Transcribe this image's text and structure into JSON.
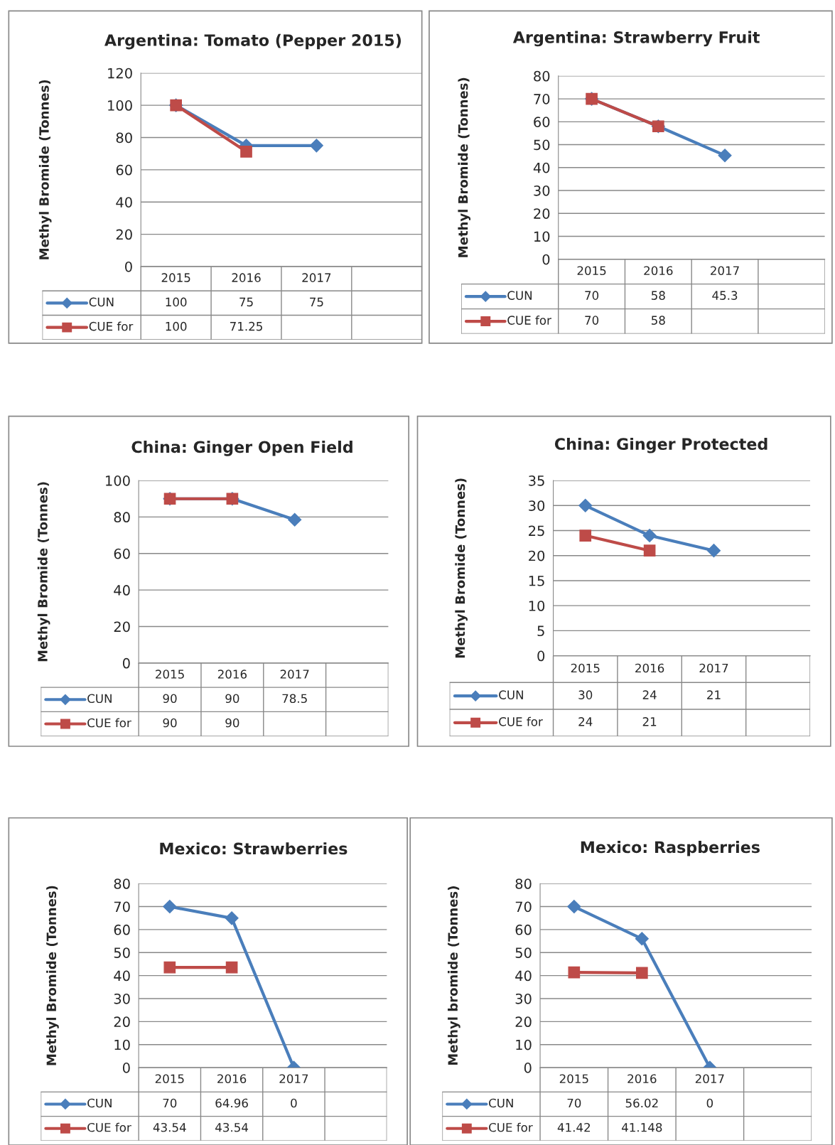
{
  "chart_data": [
    {
      "type": "line",
      "title": "Argentina: Tomato (Pepper 2015)",
      "ylabel": "Methyl Bromide (Tonnes)",
      "categories": [
        "2015",
        "2016",
        "2017",
        null
      ],
      "ylim": [
        0,
        120
      ],
      "yticks": [
        0,
        20,
        40,
        60,
        80,
        100,
        120
      ],
      "grid": "y",
      "legend": "bottom",
      "data_labels": true,
      "series": [
        {
          "name": "CUN",
          "color": "#4a7ebb",
          "marker": "diamond",
          "values": [
            100,
            75,
            75,
            null
          ]
        },
        {
          "name": "CUE for",
          "color": "#be4b48",
          "marker": "square",
          "values": [
            100,
            71.25,
            null,
            null
          ]
        }
      ]
    },
    {
      "type": "line",
      "title": "Argentina: Strawberry Fruit",
      "ylabel": "Methyl Bromide (Tonnes)",
      "categories": [
        "2015",
        "2016",
        "2017",
        null
      ],
      "ylim": [
        0,
        80
      ],
      "yticks": [
        0,
        10,
        20,
        30,
        40,
        50,
        60,
        70,
        80
      ],
      "grid": "y",
      "legend": "bottom",
      "data_labels": true,
      "series": [
        {
          "name": "CUN",
          "color": "#4a7ebb",
          "marker": "diamond",
          "values": [
            70,
            58,
            45.3,
            null
          ]
        },
        {
          "name": "CUE for",
          "color": "#be4b48",
          "marker": "square",
          "values": [
            70,
            58,
            null,
            null
          ]
        }
      ]
    },
    {
      "type": "line",
      "title": "China: Ginger Open Field",
      "ylabel": "Methyl Bromide (Tonnes)",
      "categories": [
        "2015",
        "2016",
        "2017",
        null
      ],
      "ylim": [
        0,
        100
      ],
      "yticks": [
        0,
        20,
        40,
        60,
        80,
        100
      ],
      "grid": "y",
      "legend": "bottom",
      "data_labels": true,
      "series": [
        {
          "name": "CUN",
          "color": "#4a7ebb",
          "marker": "diamond",
          "values": [
            90,
            90,
            78.5,
            null
          ]
        },
        {
          "name": "CUE for",
          "color": "#be4b48",
          "marker": "square",
          "values": [
            90,
            90,
            null,
            null
          ]
        }
      ]
    },
    {
      "type": "line",
      "title": "China: Ginger Protected",
      "ylabel": "Methyl Bromide (Tonnes)",
      "categories": [
        "2015",
        "2016",
        "2017",
        null
      ],
      "ylim": [
        0,
        35
      ],
      "yticks": [
        0,
        5,
        10,
        15,
        20,
        25,
        30,
        35
      ],
      "grid": "y",
      "legend": "bottom",
      "data_labels": true,
      "series": [
        {
          "name": "CUN",
          "color": "#4a7ebb",
          "marker": "diamond",
          "values": [
            30,
            24,
            21,
            null
          ]
        },
        {
          "name": "CUE for",
          "color": "#be4b48",
          "marker": "square",
          "values": [
            24,
            21,
            null,
            null
          ]
        }
      ]
    },
    {
      "type": "line",
      "title": "Mexico: Strawberries",
      "ylabel": "Methyl Bromide (Tonnes)",
      "categories": [
        "2015",
        "2016",
        "2017",
        null
      ],
      "ylim": [
        0,
        80
      ],
      "yticks": [
        0,
        10,
        20,
        30,
        40,
        50,
        60,
        70,
        80
      ],
      "grid": "y",
      "legend": "bottom",
      "data_labels": true,
      "series": [
        {
          "name": "CUN",
          "color": "#4a7ebb",
          "marker": "diamond",
          "values": [
            70,
            64.96,
            0,
            null
          ]
        },
        {
          "name": "CUE for",
          "color": "#be4b48",
          "marker": "square",
          "values": [
            43.54,
            43.54,
            null,
            null
          ]
        }
      ]
    },
    {
      "type": "line",
      "title": "Mexico: Raspberries",
      "ylabel": "Methyl bromide (Tonnes)",
      "categories": [
        "2015",
        "2016",
        "2017",
        null
      ],
      "ylim": [
        0,
        80
      ],
      "yticks": [
        0,
        10,
        20,
        30,
        40,
        50,
        60,
        70,
        80
      ],
      "grid": "y",
      "legend": "bottom",
      "data_labels": true,
      "series": [
        {
          "name": "CUN",
          "color": "#4a7ebb",
          "marker": "diamond",
          "values": [
            70,
            56.02,
            0,
            null
          ]
        },
        {
          "name": "CUE for",
          "color": "#be4b48",
          "marker": "square",
          "values": [
            41.42,
            41.148,
            null,
            null
          ]
        }
      ]
    }
  ]
}
